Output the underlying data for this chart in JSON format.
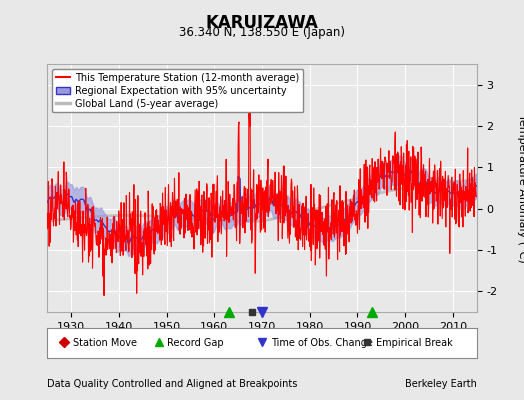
{
  "title": "KARUIZAWA",
  "subtitle": "36.340 N, 138.550 E (Japan)",
  "ylabel": "Temperature Anomaly (°C)",
  "xlabel_left": "Data Quality Controlled and Aligned at Breakpoints",
  "xlabel_right": "Berkeley Earth",
  "ylim": [
    -2.5,
    3.5
  ],
  "xlim": [
    1925,
    2015
  ],
  "xticks": [
    1930,
    1940,
    1950,
    1960,
    1970,
    1980,
    1990,
    2000,
    2010
  ],
  "yticks": [
    -2,
    -1,
    0,
    1,
    2,
    3
  ],
  "bg_color": "#e8e8e8",
  "plot_bg_color": "#e8e8e8",
  "station_color": "#ff0000",
  "regional_color": "#3333cc",
  "regional_fill_color": "#9999dd",
  "global_color": "#bbbbbb",
  "legend_items": [
    {
      "label": "This Temperature Station (12-month average)",
      "color": "#ff0000",
      "lw": 1.5
    },
    {
      "label": "Regional Expectation with 95% uncertainty",
      "color": "#3333cc",
      "lw": 1.5
    },
    {
      "label": "Global Land (5-year average)",
      "color": "#bbbbbb",
      "lw": 2.5
    }
  ],
  "markers": {
    "station_move": {
      "color": "#cc0000",
      "marker": "D",
      "years": []
    },
    "record_gap": {
      "color": "#00aa00",
      "marker": "^",
      "years": [
        1963,
        1993
      ]
    },
    "time_obs": {
      "color": "#3333cc",
      "marker": "v",
      "years": [
        1970
      ]
    },
    "empirical": {
      "color": "#333333",
      "marker": "s",
      "years": [
        1968
      ]
    }
  }
}
